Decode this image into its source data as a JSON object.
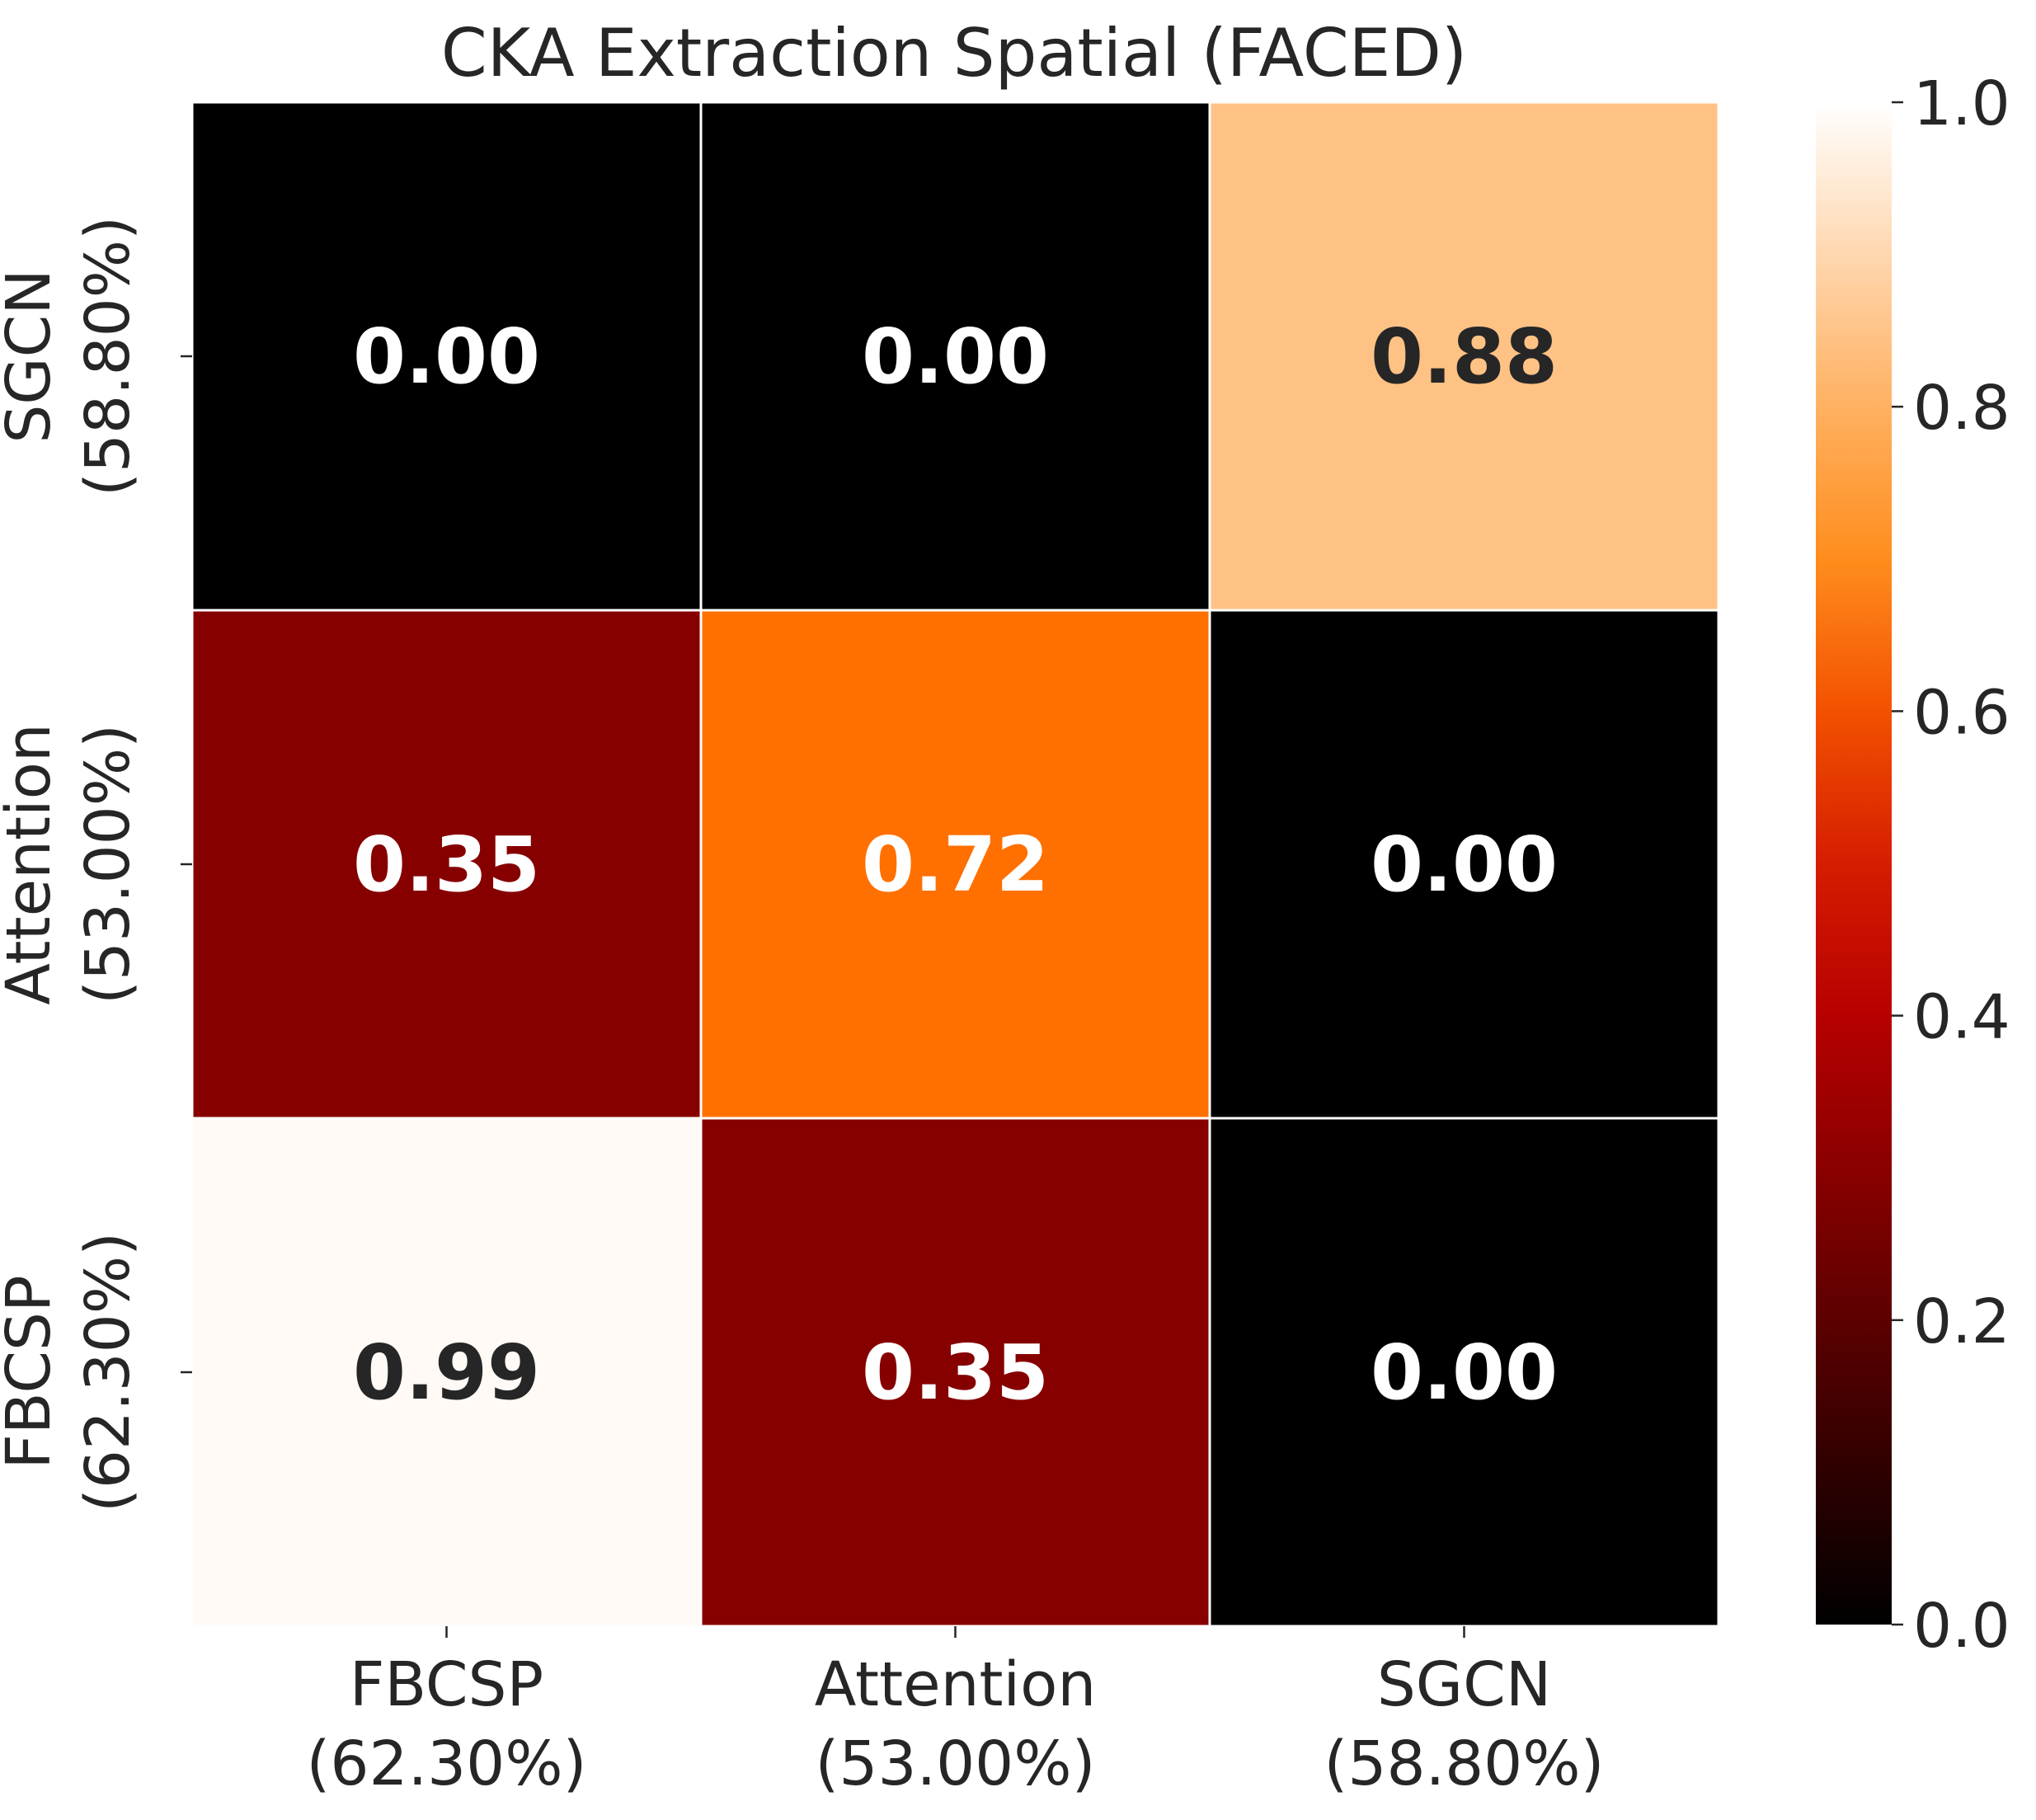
{
  "chart_data": {
    "type": "heatmap",
    "title": "CKA Extraction Spatial (FACED)",
    "x_labels": [
      [
        "FBCSP",
        "(62.30%)"
      ],
      [
        "Attention",
        "(53.00%)"
      ],
      [
        "SGCN",
        "(58.80%)"
      ]
    ],
    "y_labels_top_to_bottom": [
      [
        "SGCN",
        "(58.80%)"
      ],
      [
        "Attention",
        "(53.00%)"
      ],
      [
        "FBCSP",
        "(62.30%)"
      ]
    ],
    "values_top_to_bottom": [
      [
        0.0,
        0.0,
        0.88
      ],
      [
        0.35,
        0.72,
        0.0
      ],
      [
        0.99,
        0.35,
        0.0
      ]
    ],
    "cell_labels": [
      [
        "0.00",
        "0.00",
        "0.88"
      ],
      [
        "0.35",
        "0.72",
        "0.00"
      ],
      [
        "0.99",
        "0.35",
        "0.00"
      ]
    ],
    "colormap": "gist_heat",
    "colorbar": {
      "range": [
        0.0,
        1.0
      ],
      "ticks": [
        "0.0",
        "0.2",
        "0.4",
        "0.6",
        "0.8",
        "1.0"
      ]
    },
    "light_text_color": "#ffffff",
    "dark_text_color": "#262626"
  }
}
